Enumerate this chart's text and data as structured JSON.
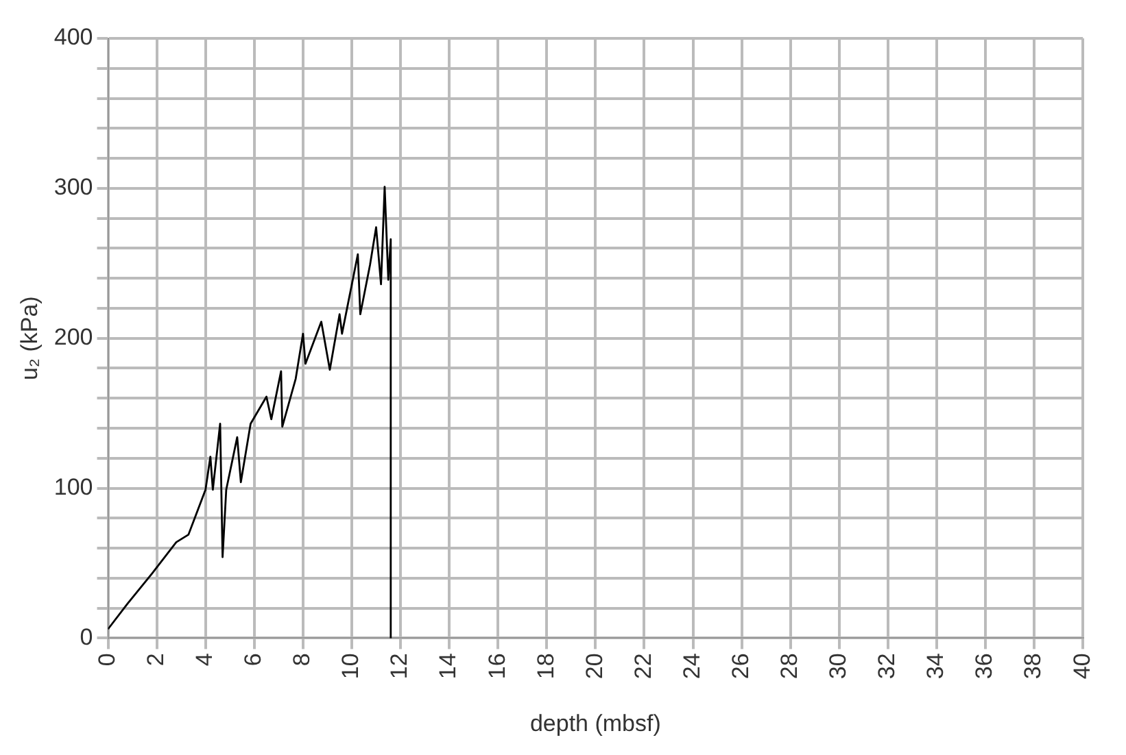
{
  "chart_data": {
    "type": "line",
    "xlabel": "depth (mbsf)",
    "ylabel": "u₂ (kPa)",
    "x": [
      0,
      0.8,
      1.8,
      2.8,
      3.3,
      4.0,
      4.2,
      4.3,
      4.6,
      4.7,
      4.85,
      5.3,
      5.45,
      5.85,
      6.5,
      6.7,
      7.1,
      7.15,
      7.7,
      8.0,
      8.1,
      8.75,
      9.1,
      9.5,
      9.6,
      10.25,
      10.35,
      10.75,
      11.0,
      11.2,
      11.35,
      11.5,
      11.6,
      11.6
    ],
    "series": [
      {
        "color": "#000000",
        "values": [
          6,
          23,
          43,
          64,
          69,
          99,
          121,
          99,
          143,
          54,
          99,
          134,
          104,
          143,
          161,
          146,
          178,
          141,
          173,
          203,
          183,
          211,
          179,
          216,
          203,
          256,
          216,
          249,
          274,
          236,
          301,
          239,
          266,
          0
        ]
      }
    ],
    "xlim": [
      0,
      40
    ],
    "xticks": [
      0,
      2,
      4,
      6,
      8,
      10,
      12,
      14,
      16,
      18,
      20,
      22,
      24,
      26,
      28,
      30,
      32,
      34,
      36,
      38,
      40
    ],
    "ylim": [
      0,
      400
    ],
    "yticks": [
      0,
      {
        "value": 20,
        "label": null
      },
      {
        "value": 40,
        "label": null
      },
      {
        "value": 60,
        "label": null
      },
      {
        "value": 80,
        "label": null
      },
      100,
      {
        "value": 120,
        "label": null
      },
      {
        "value": 140,
        "label": null
      },
      {
        "value": 160,
        "label": null
      },
      {
        "value": 180,
        "label": null
      },
      200,
      {
        "value": 220,
        "label": null
      },
      {
        "value": 240,
        "label": null
      },
      {
        "value": 260,
        "label": null
      },
      {
        "value": 280,
        "label": null
      },
      300,
      {
        "value": 320,
        "label": null
      },
      {
        "value": 340,
        "label": null
      },
      {
        "value": 360,
        "label": null
      },
      {
        "value": 380,
        "label": null
      },
      400
    ],
    "grid": true,
    "legend": false,
    "marker": "none",
    "line_style": "solid"
  }
}
